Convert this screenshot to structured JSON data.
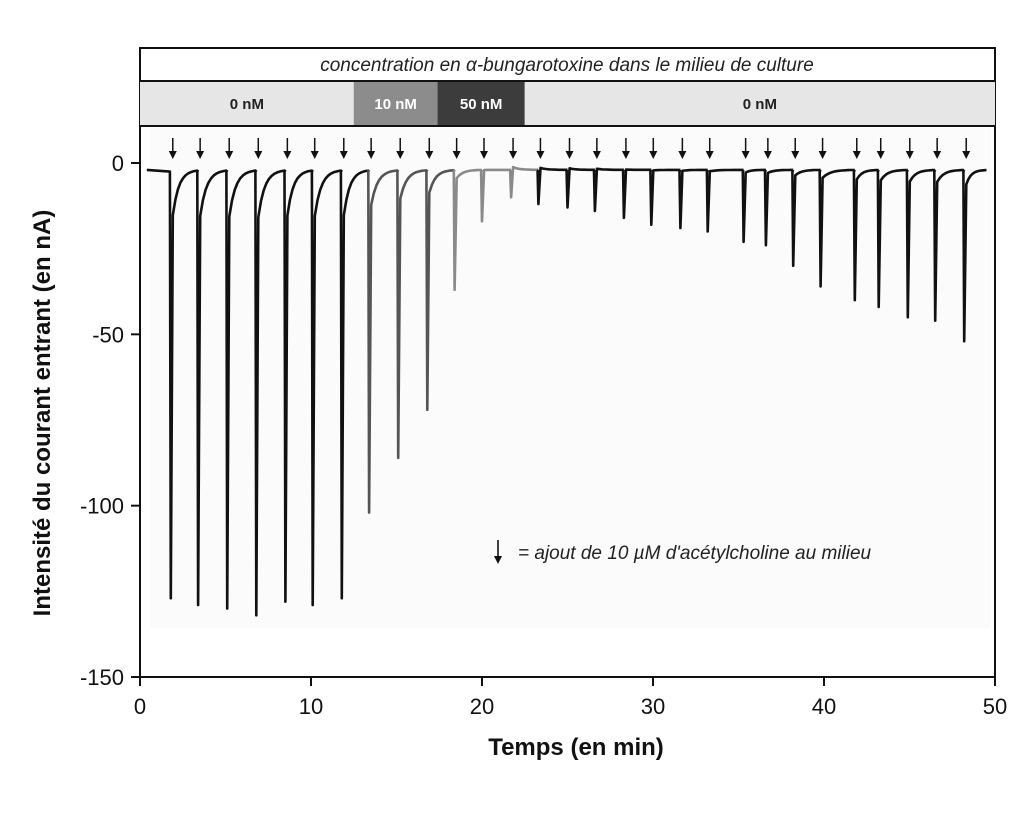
{
  "chart_data": {
    "type": "line",
    "header_title": "concentration en α-bungarotoxine dans le milieu de culture",
    "concentration_bands": [
      {
        "label": "0 nM",
        "x_start": 0,
        "x_end": 12.5,
        "fill": "#e6e6e6",
        "text_color": "#222222"
      },
      {
        "label": "10 nM",
        "x_start": 12.5,
        "x_end": 17.4,
        "fill": "#8c8c8c",
        "text_color": "#ffffff"
      },
      {
        "label": "50 nM",
        "x_start": 17.4,
        "x_end": 22.5,
        "fill": "#3c3c3c",
        "text_color": "#ffffff"
      },
      {
        "label": "0 nM",
        "x_start": 22.5,
        "x_end": 50,
        "fill": "#e6e6e6",
        "text_color": "#222222"
      }
    ],
    "xlabel": "Temps (en min)",
    "ylabel": "Intensité du courant entrant (en nA)",
    "xlim": [
      0,
      50
    ],
    "ylim": [
      -150,
      0
    ],
    "x_ticks": [
      "0",
      "10",
      "20",
      "30",
      "40",
      "50"
    ],
    "x_tick_values": [
      0,
      10,
      20,
      30,
      40,
      50
    ],
    "y_ticks": [
      "0",
      "-50",
      "-100",
      "-150"
    ],
    "y_tick_values": [
      0,
      -50,
      -100,
      -150
    ],
    "legend_text": "= ajout de 10 µM d'acétylcholine au milieu",
    "series": [
      {
        "color": "#111111",
        "points": [
          {
            "x": 1.8,
            "y": -127
          },
          {
            "x": 3.4,
            "y": -129
          },
          {
            "x": 5.1,
            "y": -130
          },
          {
            "x": 6.8,
            "y": -132
          },
          {
            "x": 8.5,
            "y": -128
          },
          {
            "x": 10.1,
            "y": -129
          },
          {
            "x": 11.8,
            "y": -127
          }
        ]
      },
      {
        "color": "#555555",
        "points": [
          {
            "x": 13.4,
            "y": -102
          },
          {
            "x": 15.1,
            "y": -86
          },
          {
            "x": 16.8,
            "y": -72
          }
        ]
      },
      {
        "color": "#8a8a8a",
        "points": [
          {
            "x": 18.4,
            "y": -37
          },
          {
            "x": 20.0,
            "y": -17
          },
          {
            "x": 21.7,
            "y": -10
          }
        ]
      },
      {
        "color": "#111111",
        "points": [
          {
            "x": 23.3,
            "y": -12
          },
          {
            "x": 25.0,
            "y": -13
          },
          {
            "x": 26.6,
            "y": -14
          },
          {
            "x": 28.3,
            "y": -16
          },
          {
            "x": 29.9,
            "y": -18
          },
          {
            "x": 31.6,
            "y": -19
          },
          {
            "x": 33.2,
            "y": -20
          },
          {
            "x": 35.3,
            "y": -23
          },
          {
            "x": 36.6,
            "y": -24
          },
          {
            "x": 38.2,
            "y": -30
          },
          {
            "x": 39.8,
            "y": -36
          },
          {
            "x": 41.8,
            "y": -40
          },
          {
            "x": 43.2,
            "y": -42
          },
          {
            "x": 44.9,
            "y": -45
          },
          {
            "x": 46.5,
            "y": -46
          },
          {
            "x": 48.2,
            "y": -52
          }
        ]
      }
    ],
    "grid": false
  }
}
